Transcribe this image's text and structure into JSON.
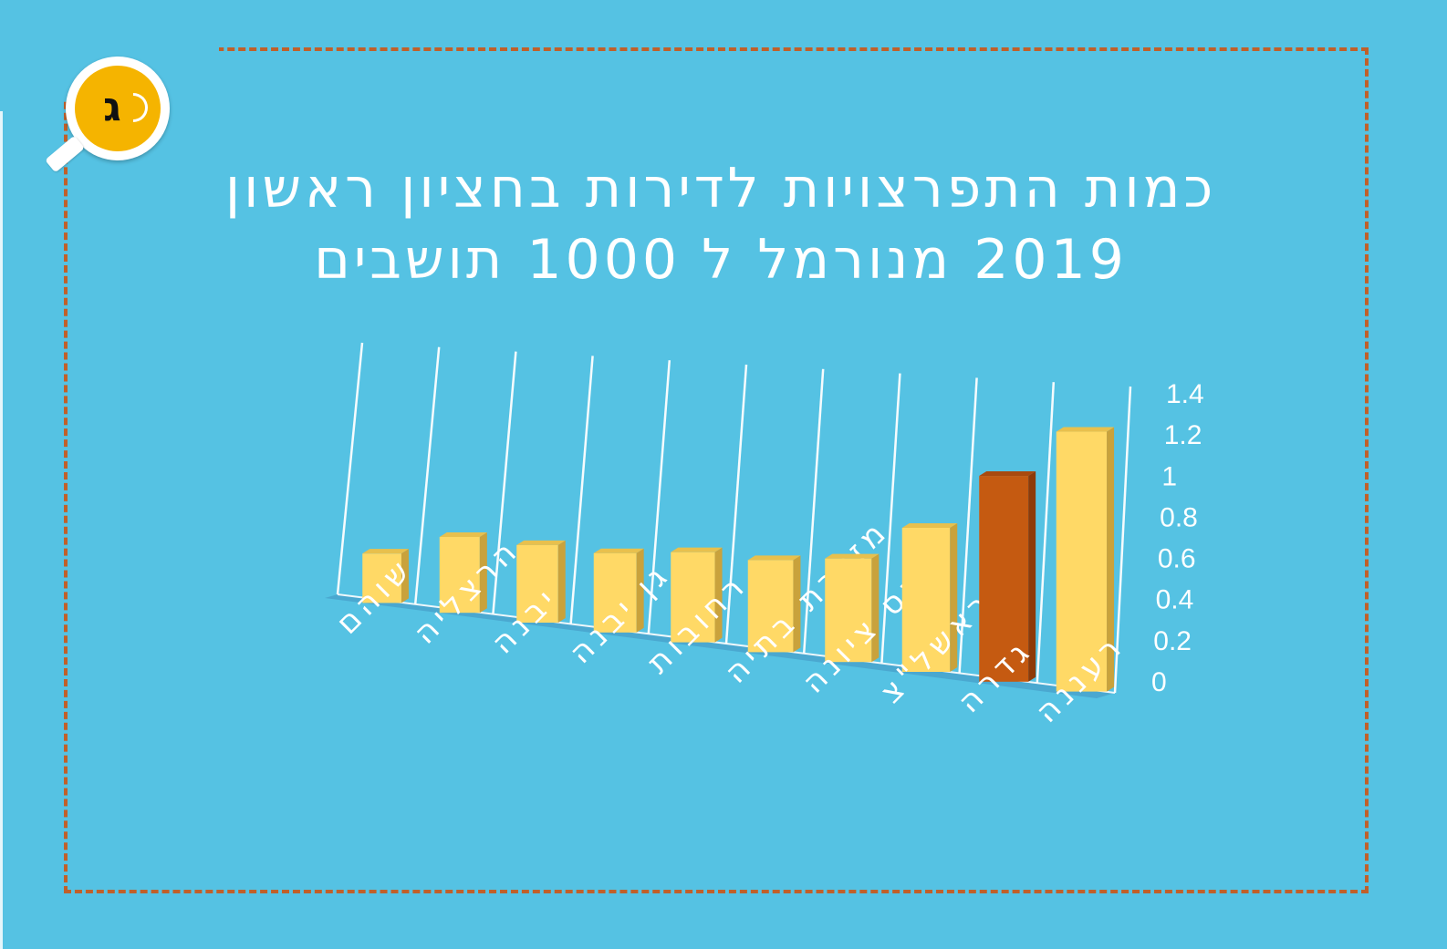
{
  "badge": {
    "letter": "ג",
    "icon": "magnifier-icon"
  },
  "colors": {
    "background": "#55c2e3",
    "frame": "#c0602a",
    "bar": "#ffd966",
    "highlight": "#c55a11"
  },
  "chart_data": {
    "type": "bar",
    "title_line1": "כמות התפרצויות לדירות בחציון ראשון",
    "title_line2": "2019 מנורמל ל 1000 תושבים",
    "categories": [
      "שוהם",
      "הרצליה",
      "יבנה",
      "גן יבנה",
      "רחובות",
      "מזכרת בתיה",
      "נס ציונה",
      "ראשל\"צ",
      "גדרה",
      "רעננה"
    ],
    "values": [
      0.3,
      0.45,
      0.45,
      0.45,
      0.5,
      0.5,
      0.55,
      0.75,
      1.05,
      1.3
    ],
    "highlight_index": 8,
    "ylim": [
      0,
      1.4
    ],
    "yticks": [
      "0",
      "0.2",
      "0.4",
      "0.6",
      "0.8",
      "1",
      "1.2",
      "1.4"
    ],
    "grid": true,
    "style": "3d"
  }
}
